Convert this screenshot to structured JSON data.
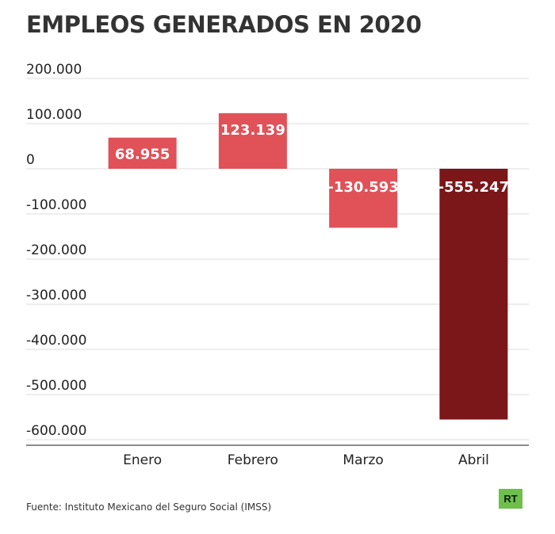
{
  "chart_data": {
    "type": "bar",
    "title": "EMPLEOS GENERADOS EN 2020",
    "categories": [
      "Enero",
      "Febrero",
      "Marzo",
      "Abril"
    ],
    "values": [
      68955,
      123139,
      -130593,
      -555247
    ],
    "value_labels": [
      "68.955",
      "123.139",
      "-130.593",
      "-555.247"
    ],
    "bar_colors": [
      "#e05158",
      "#e05158",
      "#e05158",
      "#7b1619"
    ],
    "ylim": [
      -600000,
      200000
    ],
    "yticks": [
      200000,
      100000,
      0,
      -100000,
      -200000,
      -300000,
      -400000,
      -500000,
      -600000
    ],
    "ytick_labels": [
      "200.000",
      "100.000",
      "0",
      "-100.000",
      "-200.000",
      "-300.000",
      "-400.000",
      "-500.000",
      "-600.000"
    ],
    "xlabel": "",
    "ylabel": "",
    "grid": true
  },
  "source": "Fuente: Instituto Mexicano del Seguro Social (IMSS)",
  "logo_text": "RT"
}
